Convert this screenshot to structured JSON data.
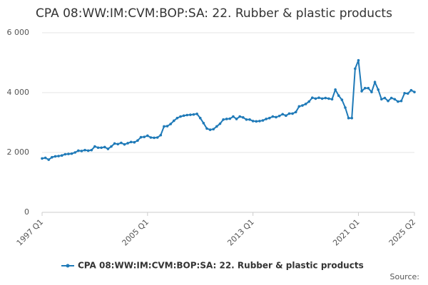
{
  "chart_data": {
    "type": "line",
    "title": "CPA 08:WW:IM:CVM:BOP:SA: 22. Rubber & plastic products",
    "source": "Source:",
    "categories": [
      "1997 Q1",
      null,
      null,
      null,
      null,
      null,
      null,
      null,
      null,
      null,
      null,
      null,
      null,
      null,
      null,
      null,
      null,
      null,
      null,
      null,
      null,
      null,
      null,
      null,
      null,
      null,
      null,
      null,
      null,
      null,
      null,
      null,
      "2005 Q1",
      null,
      null,
      null,
      null,
      null,
      null,
      null,
      null,
      null,
      null,
      null,
      null,
      null,
      null,
      null,
      null,
      null,
      null,
      null,
      null,
      null,
      null,
      null,
      null,
      null,
      null,
      null,
      null,
      null,
      null,
      null,
      "2013 Q1",
      null,
      null,
      null,
      null,
      null,
      null,
      null,
      null,
      null,
      null,
      null,
      null,
      null,
      null,
      null,
      null,
      null,
      null,
      null,
      null,
      null,
      null,
      null,
      null,
      null,
      null,
      null,
      null,
      null,
      null,
      null,
      "2021 Q1",
      null,
      null,
      null,
      null,
      null,
      null,
      null,
      null,
      null,
      null,
      null,
      null,
      null,
      null,
      null,
      null,
      "2025 Q2"
    ],
    "series": [
      {
        "name": "CPA 08:WW:IM:CVM:BOP:SA: 22. Rubber & plastic products",
        "color": "#1f7ab8",
        "values": [
          1800,
          1820,
          1760,
          1840,
          1870,
          1880,
          1900,
          1940,
          1950,
          1960,
          2000,
          2060,
          2050,
          2080,
          2060,
          2080,
          2200,
          2160,
          2160,
          2180,
          2120,
          2200,
          2300,
          2280,
          2320,
          2270,
          2310,
          2350,
          2340,
          2400,
          2510,
          2520,
          2560,
          2500,
          2490,
          2500,
          2580,
          2870,
          2880,
          2950,
          3060,
          3150,
          3200,
          3230,
          3250,
          3260,
          3270,
          3290,
          3150,
          2980,
          2800,
          2760,
          2780,
          2870,
          2960,
          3100,
          3120,
          3130,
          3200,
          3120,
          3200,
          3170,
          3100,
          3100,
          3050,
          3040,
          3050,
          3070,
          3120,
          3150,
          3200,
          3180,
          3220,
          3280,
          3230,
          3300,
          3300,
          3350,
          3540,
          3570,
          3620,
          3700,
          3830,
          3800,
          3830,
          3800,
          3820,
          3800,
          3780,
          4100,
          3900,
          3760,
          3500,
          3150,
          3150,
          4800,
          5080,
          4050,
          4150,
          4150,
          4020,
          4350,
          4100,
          3780,
          3820,
          3720,
          3820,
          3780,
          3700,
          3720,
          3980,
          3970,
          4080,
          4020
        ]
      }
    ],
    "ylim": [
      0,
      6000
    ],
    "yticks": [
      {
        "value": 0,
        "label": "0"
      },
      {
        "value": 2000,
        "label": "2 000"
      },
      {
        "value": 4000,
        "label": "4 000"
      },
      {
        "value": 6000,
        "label": "6 000"
      }
    ],
    "grid": true,
    "legend": "bottom"
  }
}
